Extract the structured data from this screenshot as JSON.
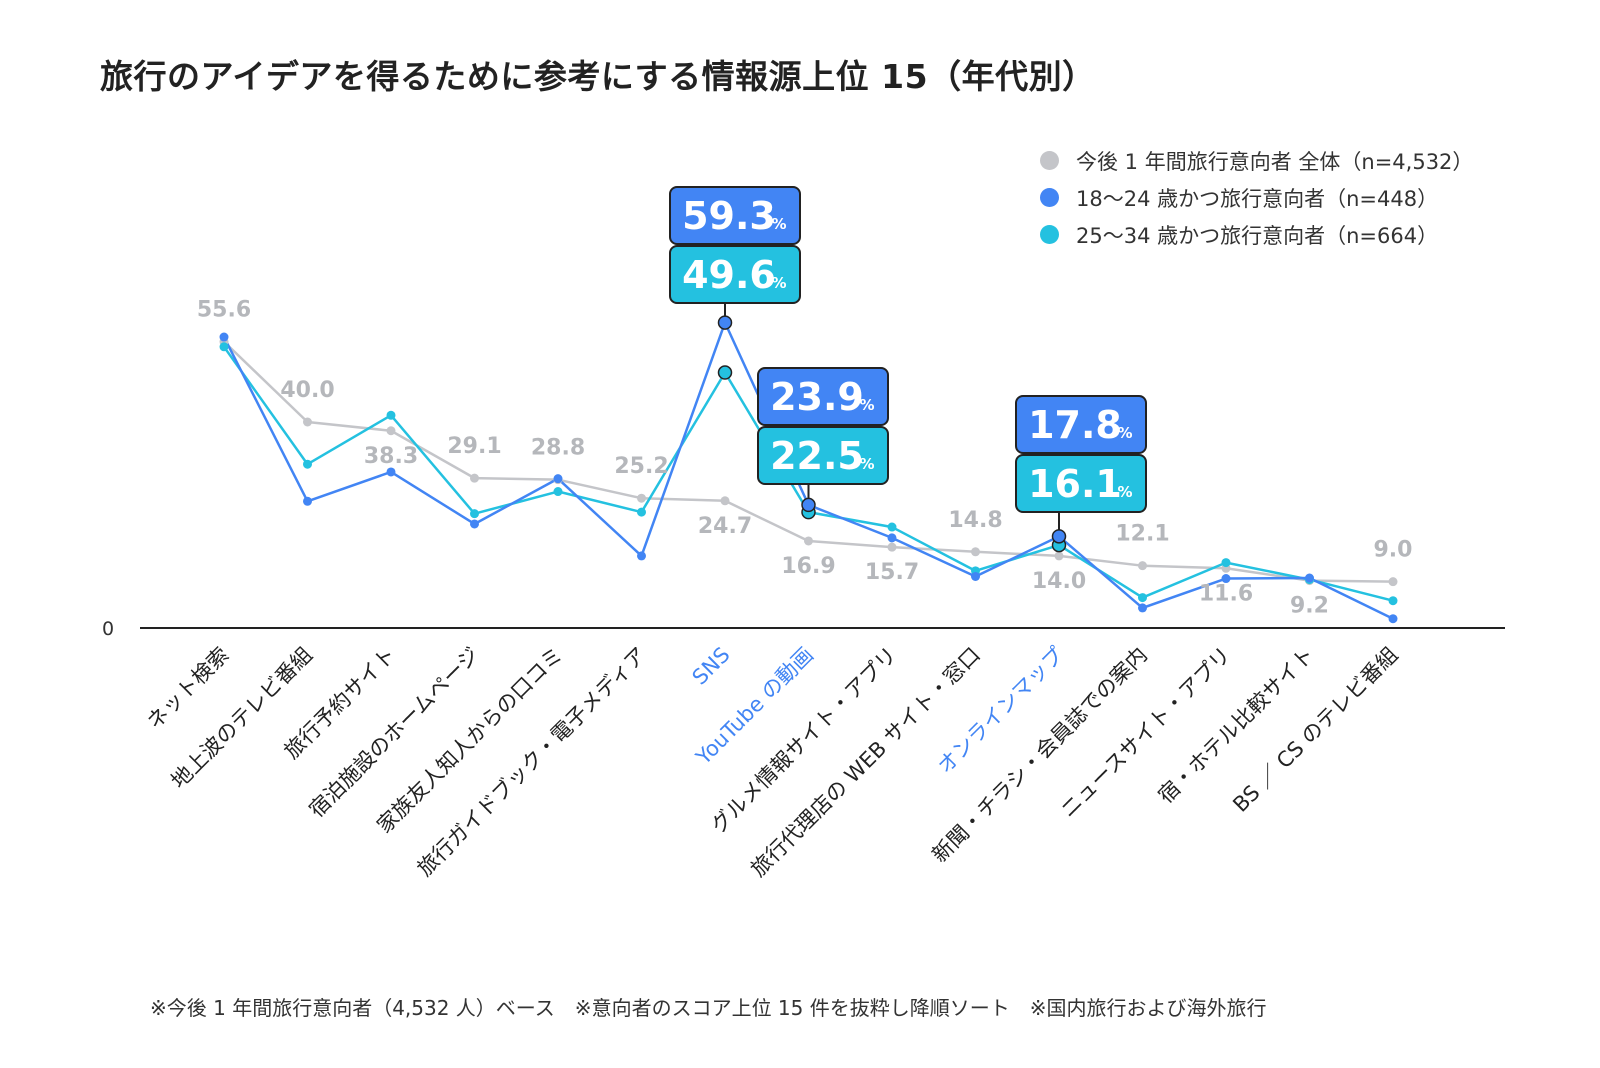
{
  "title": "旅行のアイデアを得るために参考にする情報源上位 15（年代別）",
  "legend": [
    {
      "label": "今後 1 年間旅行意向者 全体（n=4,532）",
      "color": "#c4c5c9"
    },
    {
      "label": "18〜24 歳かつ旅行意向者（n=448）",
      "color": "#4285f4"
    },
    {
      "label": "25〜34 歳かつ旅行意向者（n=664）",
      "color": "#24c1e0"
    }
  ],
  "footnotes": "※今後 1 年間旅行意向者（4,532 人）ベース　※意向者のスコア上位 15 件を抜粋し降順ソート　※国内旅行および海外旅行",
  "chart_data": {
    "type": "line",
    "title": "旅行のアイデアを得るために参考にする情報源上位 15（年代別）",
    "ylim": [
      0,
      65
    ],
    "y_zero_label": "0",
    "unit_suffix": "%",
    "categories": [
      "ネット検索",
      "地上波のテレビ番組",
      "旅行予約サイト",
      "宿泊施設のホームページ",
      "家族友人知人からの口コミ",
      "旅行ガイドブック・電子メディア",
      "SNS",
      "YouTube の動画",
      "グルメ情報サイト・アプリ",
      "旅行代理店の WEB サイト・窓口",
      "オンラインマップ",
      "新聞・チラシ・会員誌での案内",
      "ニュースサイト・アプリ",
      "宿・ホテル比較サイト",
      "BS ／ CS のテレビ番組"
    ],
    "highlight_categories": [
      6,
      7,
      10
    ],
    "series": [
      {
        "name": "今後 1 年間旅行意向者 全体（n=4,532）",
        "color": "#c4c5c9",
        "values": [
          55.6,
          40.0,
          38.3,
          29.1,
          28.8,
          25.2,
          24.7,
          16.9,
          15.7,
          14.8,
          14.0,
          12.1,
          11.6,
          9.2,
          9.0
        ],
        "labels": [
          "55.6",
          "40.0",
          "38.3",
          "29.1",
          "28.8",
          "25.2",
          "24.7",
          "16.9",
          "15.7",
          "14.8",
          "14.0",
          "12.1",
          "11.6",
          "9.2",
          "9.0"
        ]
      },
      {
        "name": "18〜24 歳かつ旅行意向者（n=448）",
        "color": "#4285f4",
        "values": [
          56.5,
          24.6,
          30.3,
          20.2,
          29.0,
          14.0,
          59.3,
          23.9,
          17.5,
          10.0,
          17.8,
          3.9,
          9.6,
          9.7,
          1.8
        ]
      },
      {
        "name": "25〜34 歳かつ旅行意向者（n=664）",
        "color": "#24c1e0",
        "values": [
          54.6,
          31.8,
          41.3,
          22.2,
          26.5,
          22.5,
          49.6,
          22.5,
          19.6,
          11.1,
          16.1,
          5.9,
          12.7,
          9.4,
          5.3
        ]
      }
    ],
    "callouts": [
      {
        "category_index": 6,
        "values": [
          "59.3",
          "49.6"
        ]
      },
      {
        "category_index": 7,
        "values": [
          "23.9",
          "22.5"
        ]
      },
      {
        "category_index": 10,
        "values": [
          "17.8",
          "16.1"
        ]
      }
    ]
  }
}
